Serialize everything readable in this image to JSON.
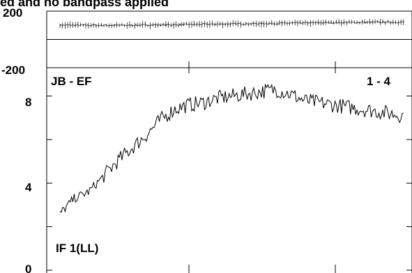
{
  "header": {
    "title": "ed and no bandpass applied"
  },
  "chart_data": [
    {
      "type": "scatter",
      "panel": "phase",
      "ylim": [
        -200,
        200
      ],
      "y_tick_labels": [
        "200",
        "-200"
      ],
      "x_range": [
        0,
        240
      ],
      "series": [
        {
          "trend": [
            [
              0,
              101
            ],
            [
              20,
              100
            ],
            [
              40,
              100
            ],
            [
              60,
              102
            ],
            [
              80,
              104
            ],
            [
              100,
              107
            ],
            [
              120,
              110
            ],
            [
              140,
              112
            ],
            [
              160,
              115
            ],
            [
              180,
              118
            ],
            [
              200,
              120
            ],
            [
              220,
              122
            ],
            [
              240,
              122
            ]
          ],
          "scatter": 12
        }
      ],
      "errorbars": true,
      "zero_line": 0
    },
    {
      "type": "line",
      "panel": "amplitude",
      "title": "JB - EF",
      "baseline_label": "1 - 4",
      "if_label": "IF 1(LL)",
      "ylim": [
        0,
        9.3
      ],
      "y_tick_labels": [
        "8",
        "4",
        "0"
      ],
      "y_tick_values": [
        8,
        4,
        0
      ],
      "minor_ticks": [
        2,
        6
      ],
      "x_range": [
        0,
        240
      ],
      "series": [
        {
          "x": [
            0,
            10,
            20,
            30,
            40,
            50,
            60,
            70,
            80,
            90,
            100,
            110,
            120,
            130,
            140,
            150,
            160,
            170,
            180,
            190,
            200,
            210,
            220,
            230,
            240
          ],
          "y": [
            2.6,
            3.3,
            3.6,
            4.3,
            5.0,
            5.6,
            6.2,
            6.9,
            7.4,
            7.6,
            7.7,
            7.9,
            8.0,
            8.1,
            8.2,
            8.3,
            8.1,
            7.8,
            7.7,
            7.6,
            7.5,
            7.4,
            7.3,
            7.2,
            7.1
          ],
          "noise": 0.35
        }
      ]
    }
  ]
}
